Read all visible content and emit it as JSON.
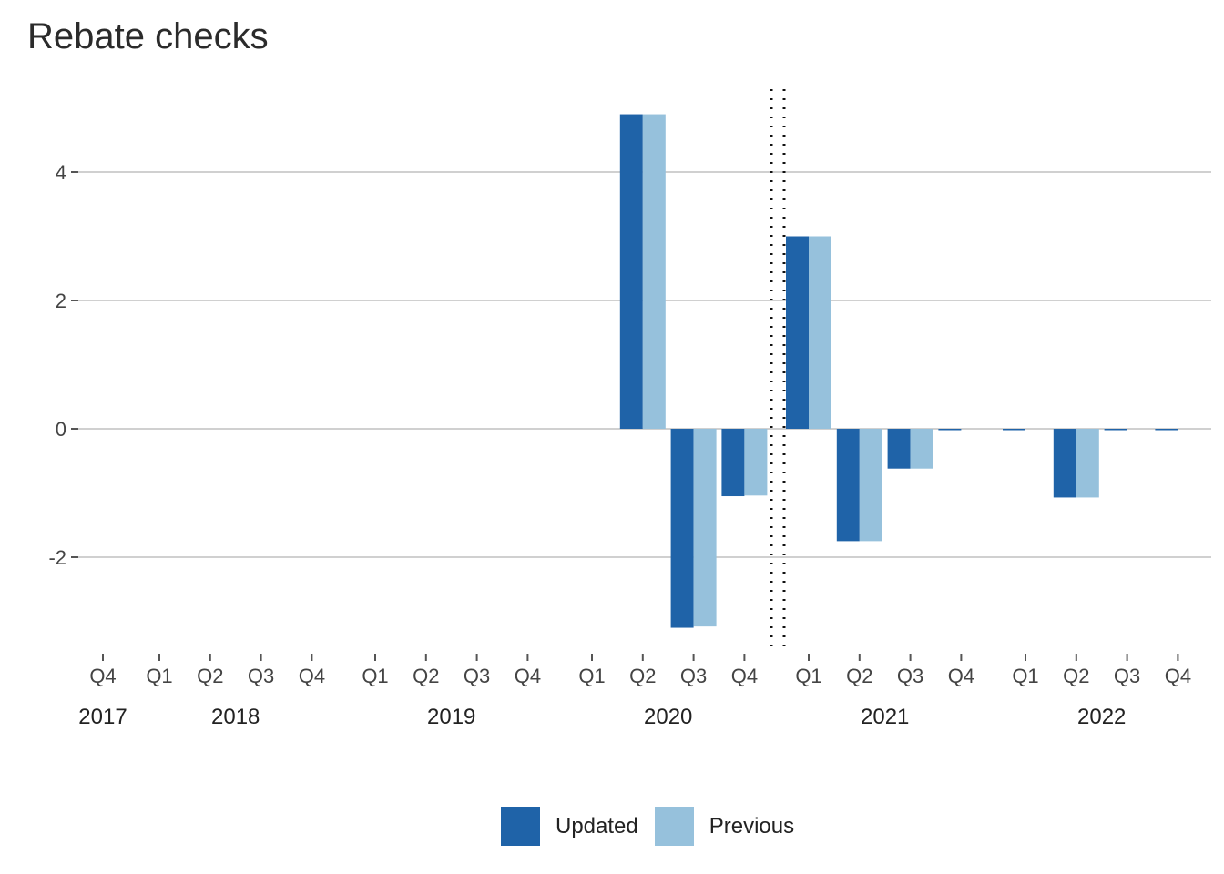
{
  "chart_data": {
    "type": "bar",
    "title": "Rebate checks",
    "xlabel": "",
    "ylabel": "",
    "ylim": [
      -3.45,
      5.2
    ],
    "yticks": [
      -2,
      0,
      2,
      4
    ],
    "grid": true,
    "legend_position": "bottom",
    "colors": {
      "Updated": "#1f63a8",
      "Previous": "#96c1dc"
    },
    "categories": [
      "2017 Q4",
      "2018 Q1",
      "2018 Q2",
      "2018 Q3",
      "2018 Q4",
      "2019 Q1",
      "2019 Q2",
      "2019 Q3",
      "2019 Q4",
      "2020 Q1",
      "2020 Q2",
      "2020 Q3",
      "2020 Q4",
      "2021 Q1",
      "2021 Q2",
      "2021 Q3",
      "2021 Q4",
      "2022 Q1",
      "2022 Q2",
      "2022 Q3",
      "2022 Q4"
    ],
    "quarter_labels": [
      "Q4",
      "Q1",
      "Q2",
      "Q3",
      "Q4",
      "Q1",
      "Q2",
      "Q3",
      "Q4",
      "Q1",
      "Q2",
      "Q3",
      "Q4",
      "Q1",
      "Q2",
      "Q3",
      "Q4",
      "Q1",
      "Q2",
      "Q3",
      "Q4"
    ],
    "years": [
      {
        "label": "2017",
        "first": 0,
        "last": 0
      },
      {
        "label": "2018",
        "first": 1,
        "last": 4
      },
      {
        "label": "2019",
        "first": 5,
        "last": 8
      },
      {
        "label": "2020",
        "first": 9,
        "last": 12
      },
      {
        "label": "2021",
        "first": 13,
        "last": 16
      },
      {
        "label": "2022",
        "first": 17,
        "last": 20
      }
    ],
    "series": [
      {
        "name": "Updated",
        "values": [
          0,
          0,
          0,
          0,
          0,
          0,
          0,
          0,
          0,
          0,
          4.9,
          -3.1,
          -1.05,
          3.0,
          -1.75,
          -0.62,
          -0.02,
          -0.02,
          -1.07,
          -0.02,
          -0.02
        ]
      },
      {
        "name": "Previous",
        "values": [
          0,
          0,
          0,
          0,
          0,
          0,
          0,
          0,
          0,
          0,
          4.9,
          -3.08,
          -1.04,
          3.0,
          -1.75,
          -0.62,
          0,
          0,
          -1.07,
          0,
          0
        ]
      }
    ],
    "annotations": [
      {
        "type": "dotted-vertical-lines",
        "between": [
          "2020 Q4",
          "2021 Q1"
        ]
      }
    ]
  }
}
